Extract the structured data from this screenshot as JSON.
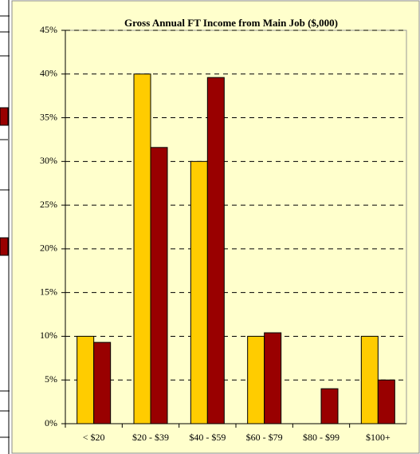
{
  "chart_data": {
    "type": "bar",
    "title": "Gross Annual FT Income from Main Job ($,000)",
    "categories": [
      "< $20",
      "$20 - $39",
      "$40 - $59",
      "$60 - $79",
      "$80 - $99",
      "$100+"
    ],
    "series": [
      {
        "color": "#ffcc00",
        "values": [
          10,
          40,
          30,
          10,
          0,
          10
        ]
      },
      {
        "color": "#990000",
        "values": [
          9.3,
          31.6,
          39.6,
          10.4,
          4.0,
          5.0
        ]
      }
    ],
    "ylim": [
      0,
      45
    ],
    "yticks": [
      {
        "value": 0,
        "label": "0%"
      },
      {
        "value": 5,
        "label": "5%"
      },
      {
        "value": 10,
        "label": "10%"
      },
      {
        "value": 15,
        "label": "15%"
      },
      {
        "value": 20,
        "label": "20%"
      },
      {
        "value": 25,
        "label": "25%"
      },
      {
        "value": 30,
        "label": "30%"
      },
      {
        "value": 35,
        "label": "35%"
      },
      {
        "value": 40,
        "label": "40%"
      },
      {
        "value": 45,
        "label": "45%"
      }
    ],
    "grid": true
  }
}
